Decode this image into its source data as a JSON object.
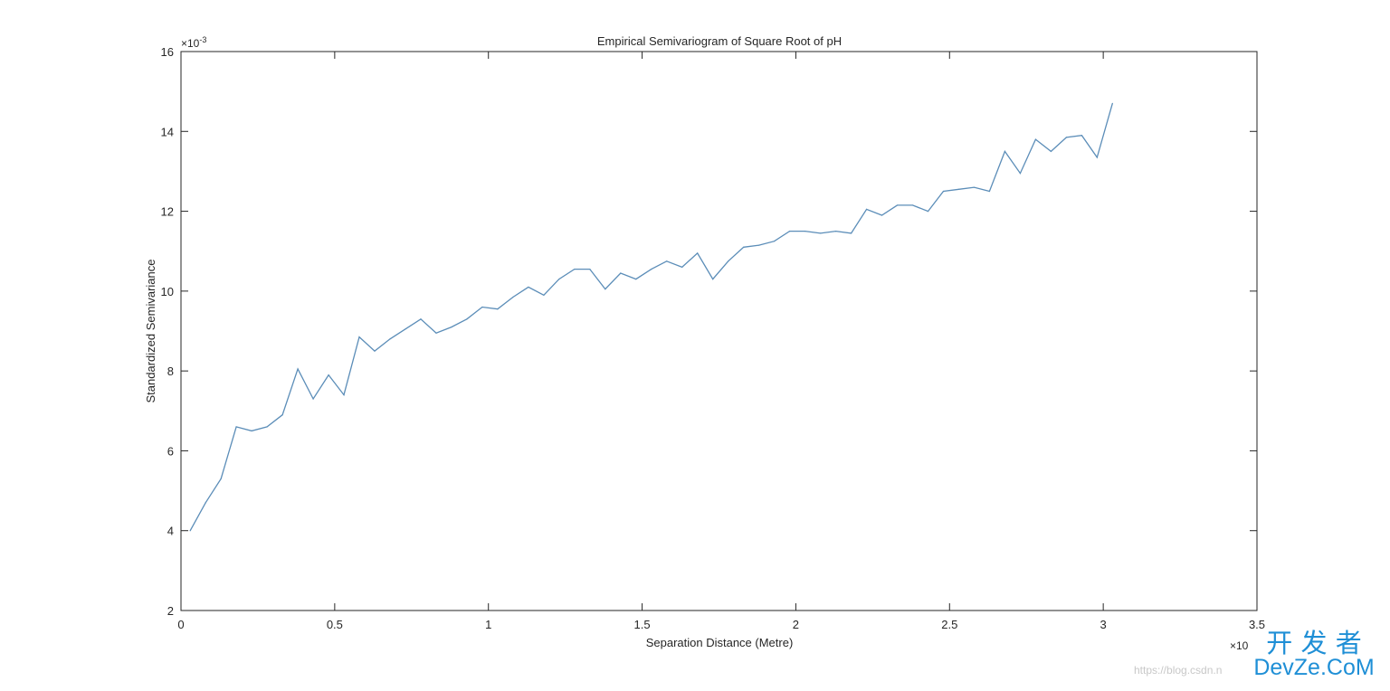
{
  "chart_data": {
    "type": "line",
    "title": "Empirical Semivariogram of Square Root of pH",
    "xlabel": "Separation Distance (Metre)",
    "ylabel": "Standardized Semivariance",
    "x_exponent_label": "×10",
    "y_exponent_label": "×10",
    "y_exponent_power": "-3",
    "xlim": [
      0,
      3.5
    ],
    "ylim": [
      2,
      16
    ],
    "x_ticks": [
      "0",
      "0.5",
      "1",
      "1.5",
      "2",
      "2.5",
      "3",
      "3.5"
    ],
    "y_ticks": [
      "2",
      "4",
      "6",
      "8",
      "10",
      "12",
      "14",
      "16"
    ],
    "grid": false,
    "line_color": "#5b8db8",
    "x": [
      0.03,
      0.08,
      0.13,
      0.18,
      0.23,
      0.28,
      0.33,
      0.38,
      0.43,
      0.48,
      0.53,
      0.58,
      0.63,
      0.68,
      0.73,
      0.78,
      0.83,
      0.88,
      0.93,
      0.98,
      1.03,
      1.08,
      1.13,
      1.18,
      1.23,
      1.28,
      1.33,
      1.38,
      1.43,
      1.48,
      1.53,
      1.58,
      1.63,
      1.68,
      1.73,
      1.78,
      1.83,
      1.88,
      1.93,
      1.98,
      2.03,
      2.08,
      2.13,
      2.18,
      2.23,
      2.28,
      2.33,
      2.38,
      2.43,
      2.48,
      2.53,
      2.58,
      2.63,
      2.68,
      2.73,
      2.78,
      2.83,
      2.88,
      2.93,
      2.98,
      3.03
    ],
    "y": [
      4.0,
      4.7,
      5.3,
      6.6,
      6.5,
      6.6,
      6.9,
      8.05,
      7.3,
      7.9,
      7.4,
      8.85,
      8.5,
      8.8,
      9.05,
      9.3,
      8.95,
      9.1,
      9.3,
      9.6,
      9.55,
      9.85,
      10.1,
      9.9,
      10.3,
      10.55,
      10.55,
      10.05,
      10.45,
      10.3,
      10.55,
      10.75,
      10.6,
      10.95,
      10.3,
      10.75,
      11.1,
      11.15,
      11.25,
      11.5,
      11.5,
      11.45,
      11.5,
      11.45,
      12.05,
      11.9,
      12.15,
      12.15,
      12.0,
      12.5,
      12.55,
      12.6,
      12.5,
      13.5,
      12.95,
      13.8,
      13.5,
      13.85,
      13.9,
      13.35,
      14.7
    ]
  },
  "watermark": {
    "chinese": "开 发 者",
    "brand": "DevZe.CoM",
    "url": "https://blog.csdn.n"
  }
}
